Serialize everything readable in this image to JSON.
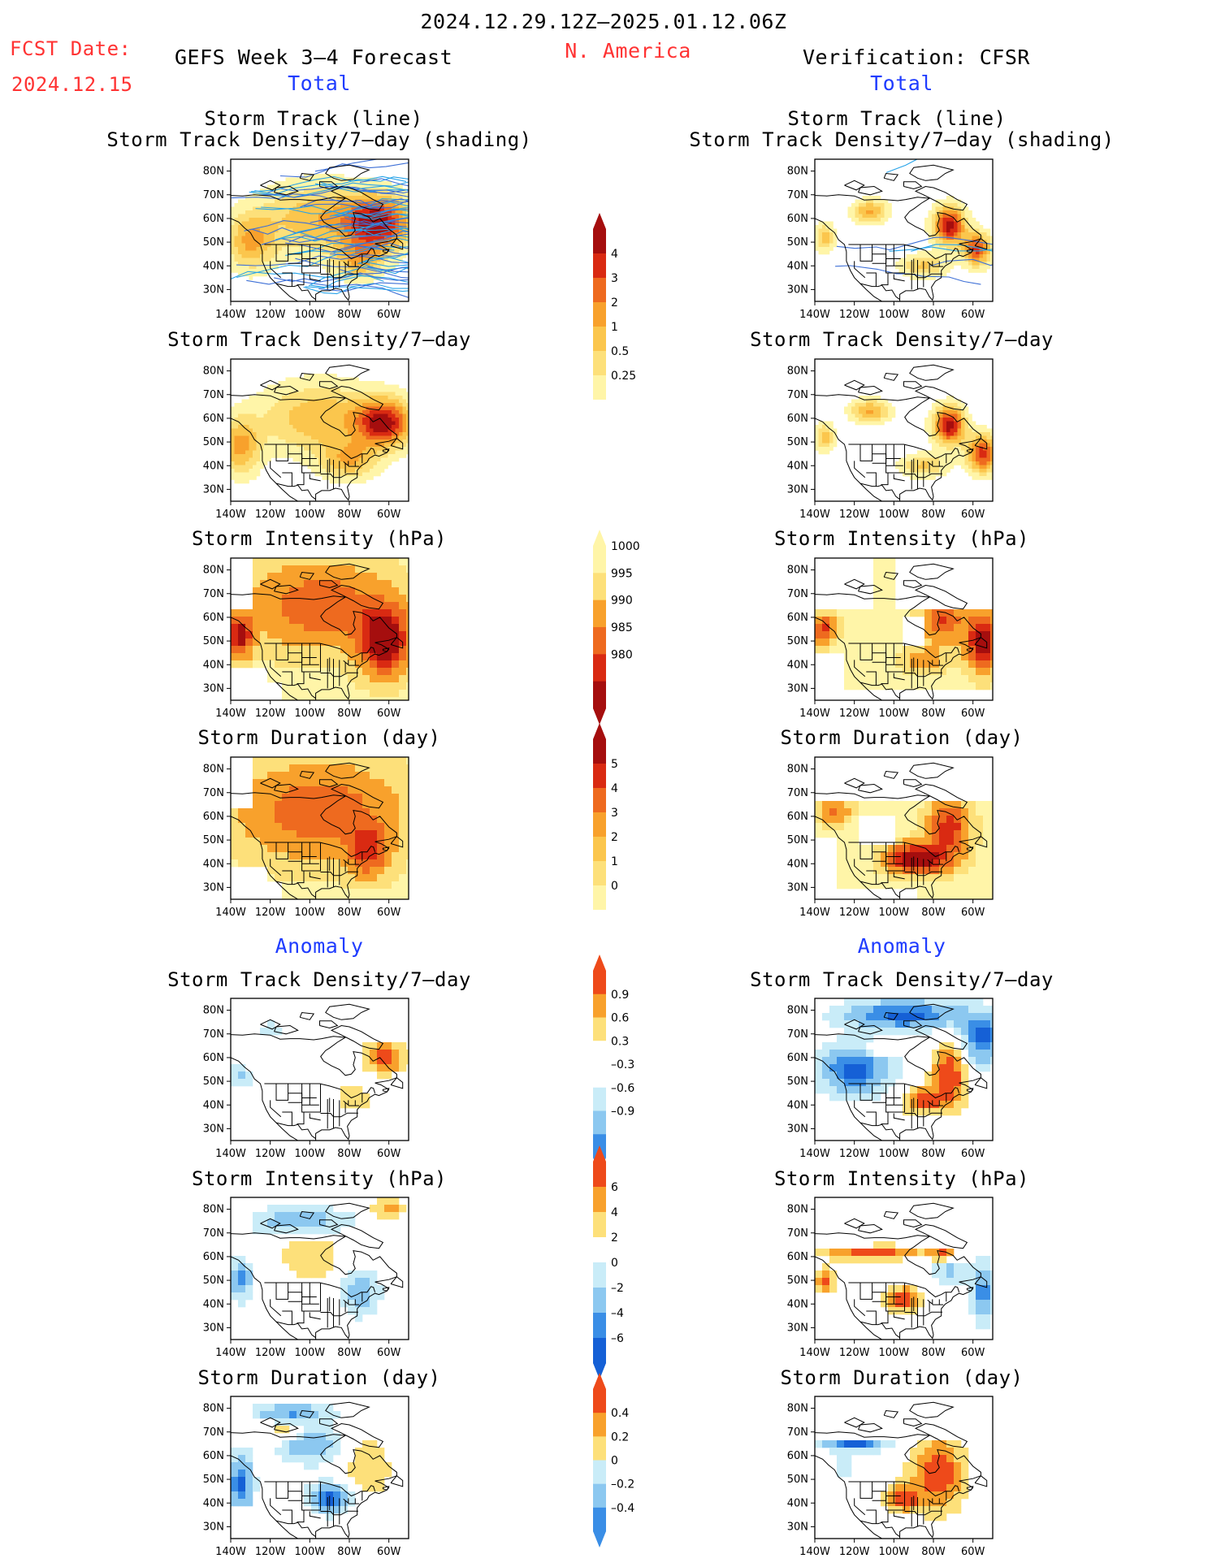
{
  "header": {
    "date_range": "2024.12.29.12Z–2025.01.12.06Z",
    "fcst_label": "FCST Date:",
    "fcst_date": "2024.12.15",
    "left_title": "GEFS Week 3–4 Forecast",
    "region": "N. America",
    "right_title": "Verification: CFSR",
    "total_left": "Total",
    "total_right": "Total",
    "anomaly_left": "Anomaly",
    "anomaly_right": "Anomaly"
  },
  "axes": {
    "lat_ticks": [
      "80N",
      "70N",
      "60N",
      "50N",
      "40N",
      "30N"
    ],
    "lon_ticks": [
      "140W",
      "120W",
      "100W",
      "80W",
      "60W"
    ]
  },
  "panels": {
    "p_track_l1": "Storm Track (line)",
    "p_track_l2": "Storm Track Density/7–day (shading)",
    "p_density": "Storm Track Density/7–day",
    "p_intensity": "Storm Intensity (hPa)",
    "p_duration": "Storm Duration (day)"
  },
  "colors": {
    "density_scale": [
      "#fff5a8",
      "#fde07a",
      "#fbc64d",
      "#f8a12c",
      "#ee6a1f",
      "#d92a12",
      "#a50e0e"
    ],
    "intensity_scale": [
      "#fff5a8",
      "#fde07a",
      "#f8a12c",
      "#ee6a1f",
      "#d92a12",
      "#a50e0e"
    ],
    "anom_scale": [
      "#1560d6",
      "#3a8ee6",
      "#8cc8f0",
      "#c9ecf8",
      "#ffffff",
      "#fde07a",
      "#f8a12c",
      "#ee4a1a"
    ],
    "track_lines": [
      "#27a3e8",
      "#3d6fd6"
    ],
    "map_lines": "#000000"
  },
  "chart_data": [
    {
      "type": "heatmap",
      "title": "Storm Track (line) / Storm Track Density/7–day (shading)",
      "source": "GEFS",
      "ylim": [
        25,
        85
      ],
      "xlim": [
        -140,
        -50
      ]
    },
    {
      "type": "heatmap",
      "title": "Storm Track (line) / Storm Track Density/7–day (shading)",
      "source": "CFSR",
      "ylim": [
        25,
        85
      ],
      "xlim": [
        -140,
        -50
      ]
    },
    {
      "type": "heatmap",
      "title": "Storm Track Density/7–day",
      "source": "GEFS",
      "colorbar": [
        0.25,
        0.5,
        1,
        2,
        3,
        4
      ]
    },
    {
      "type": "heatmap",
      "title": "Storm Track Density/7–day",
      "source": "CFSR",
      "colorbar": [
        0.25,
        0.5,
        1,
        2,
        3,
        4
      ]
    },
    {
      "type": "heatmap",
      "title": "Storm Intensity (hPa)",
      "source": "GEFS",
      "colorbar": [
        1000,
        995,
        990,
        985,
        980
      ]
    },
    {
      "type": "heatmap",
      "title": "Storm Intensity (hPa)",
      "source": "CFSR",
      "colorbar": [
        1000,
        995,
        990,
        985,
        980
      ]
    },
    {
      "type": "heatmap",
      "title": "Storm Duration (day)",
      "source": "GEFS",
      "colorbar": [
        5,
        4,
        3,
        2,
        1,
        0
      ]
    },
    {
      "type": "heatmap",
      "title": "Storm Duration (day)",
      "source": "CFSR",
      "colorbar": [
        5,
        4,
        3,
        2,
        1,
        0
      ]
    },
    {
      "type": "heatmap",
      "title": "Storm Track Density/7–day",
      "source": "GEFS anomaly",
      "colorbar": [
        0.9,
        0.6,
        0.3,
        -0.3,
        -0.6,
        -0.9
      ]
    },
    {
      "type": "heatmap",
      "title": "Storm Track Density/7–day",
      "source": "CFSR anomaly",
      "colorbar": [
        0.9,
        0.6,
        0.3,
        -0.3,
        -0.6,
        -0.9
      ]
    },
    {
      "type": "heatmap",
      "title": "Storm Intensity (hPa)",
      "source": "GEFS anomaly",
      "colorbar": [
        6,
        4,
        2,
        0,
        -2,
        -4,
        -6
      ]
    },
    {
      "type": "heatmap",
      "title": "Storm Intensity (hPa)",
      "source": "CFSR anomaly",
      "colorbar": [
        6,
        4,
        2,
        0,
        -2,
        -4,
        -6
      ]
    },
    {
      "type": "heatmap",
      "title": "Storm Duration (day)",
      "source": "GEFS anomaly",
      "colorbar": [
        0.4,
        0.2,
        0,
        -0.2,
        -0.4
      ]
    },
    {
      "type": "heatmap",
      "title": "Storm Duration (day)",
      "source": "CFSR anomaly",
      "colorbar": [
        0.4,
        0.2,
        0,
        -0.2,
        -0.4
      ]
    }
  ],
  "colorbars": {
    "density": [
      "4",
      "3",
      "2",
      "1",
      "0.5",
      "0.25"
    ],
    "intensity": [
      "1000",
      "995",
      "990",
      "985",
      "980"
    ],
    "duration": [
      "5",
      "4",
      "3",
      "2",
      "1",
      "0"
    ],
    "density_anom": [
      "0.9",
      "0.6",
      "0.3",
      "–0.3",
      "–0.6",
      "–0.9"
    ],
    "intensity_anom": [
      "6",
      "4",
      "2",
      "0",
      "–2",
      "–4",
      "–6"
    ],
    "duration_anom": [
      "0.4",
      "0.2",
      "0",
      "–0.2",
      "–0.4"
    ]
  }
}
